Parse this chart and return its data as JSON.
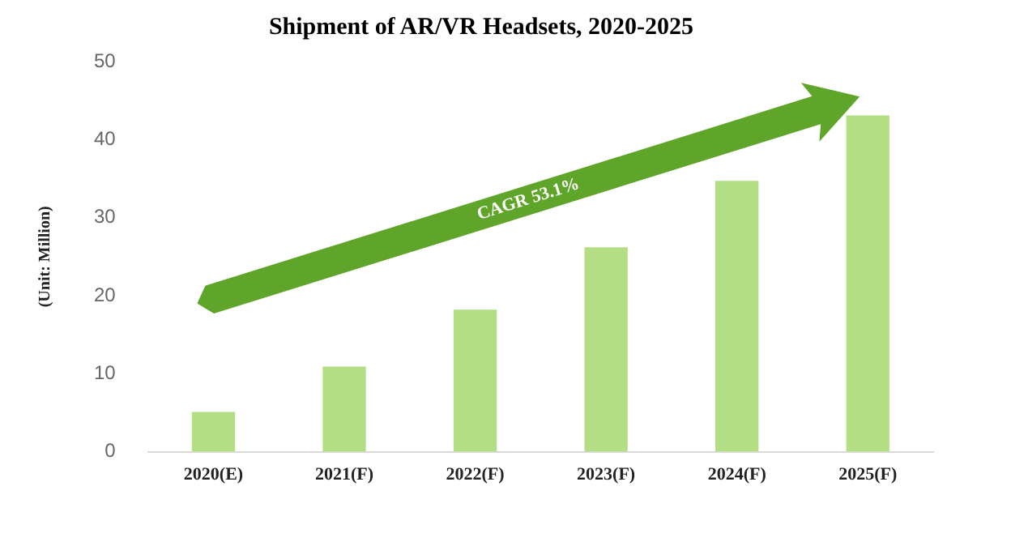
{
  "chart_data": {
    "type": "bar",
    "title": "Shipment of AR/VR Headsets, 2020-2025",
    "ylabel": "(Unit: Million)",
    "categories": [
      "2020(E)",
      "2021(F)",
      "2022(F)",
      "2023(F)",
      "2024(F)",
      "2025(F)"
    ],
    "values": [
      5.1,
      10.9,
      18.2,
      26.2,
      34.7,
      43.1
    ],
    "color": "#b3de84",
    "ylim": [
      0,
      50
    ],
    "yticks": [
      0,
      10,
      20,
      30,
      40,
      50
    ],
    "grid": false,
    "annotations": [
      "CAGR 53.1%"
    ]
  }
}
